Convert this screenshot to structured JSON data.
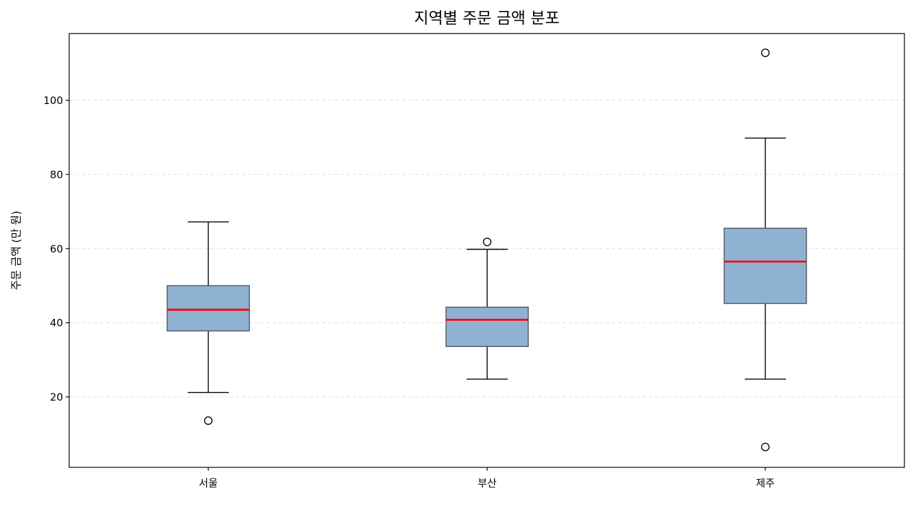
{
  "chart_data": {
    "type": "box",
    "title": "지역별 주문 금액 분포",
    "xlabel": "",
    "ylabel": "주문 금액 (만 원)",
    "categories": [
      "서울",
      "부산",
      "제주"
    ],
    "ylim": [
      1,
      118
    ],
    "yticks": [
      20,
      40,
      60,
      80,
      100
    ],
    "grid": {
      "y": true,
      "x": false
    },
    "legend": "none",
    "colors": {
      "box_fill": "#8fb2d2",
      "box_edge": "#4a5560",
      "median": "#ff0000",
      "whisker": "#000000",
      "grid": "#dddddd",
      "flier_edge": "#000000"
    },
    "boxes": [
      {
        "category": "서울",
        "whisker_low": 21.2,
        "q1": 37.8,
        "median": 43.5,
        "q3": 50.0,
        "whisker_high": 67.2,
        "fliers": [
          13.6
        ]
      },
      {
        "category": "부산",
        "whisker_low": 24.8,
        "q1": 33.6,
        "median": 40.8,
        "q3": 44.2,
        "whisker_high": 59.8,
        "fliers": [
          61.8
        ]
      },
      {
        "category": "제주",
        "whisker_low": 24.8,
        "q1": 45.2,
        "median": 56.5,
        "q3": 65.5,
        "whisker_high": 89.8,
        "fliers": [
          112.8,
          6.5
        ]
      }
    ]
  }
}
